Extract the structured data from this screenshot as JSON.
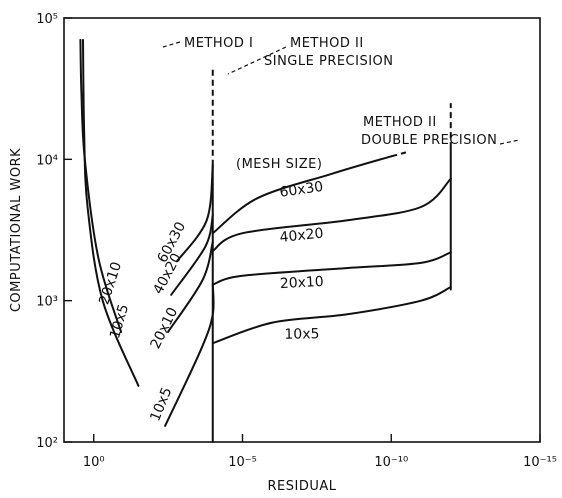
{
  "chart_data": {
    "type": "line",
    "title": "",
    "xlabel": "RESIDUAL",
    "ylabel": "COMPUTATIONAL WORK",
    "x_scale": "log",
    "y_scale": "log",
    "x_direction": "decreasing",
    "xlim": [
      10,
      1e-15
    ],
    "ylim": [
      100,
      100000
    ],
    "x_ticks": [
      {
        "value": 1,
        "label": "10⁰"
      },
      {
        "value": 1e-05,
        "label": "10⁻⁵"
      },
      {
        "value": 1e-10,
        "label": "10⁻¹⁰"
      },
      {
        "value": 1e-15,
        "label": "10⁻¹⁵"
      }
    ],
    "y_ticks": [
      {
        "value": 100,
        "label": "10²"
      },
      {
        "value": 1000,
        "label": "10³"
      },
      {
        "value": 10000,
        "label": "10⁴"
      },
      {
        "value": 100000,
        "label": "10⁵"
      }
    ],
    "annotations": {
      "method1": "METHOD I",
      "method2_single_line1": "METHOD II",
      "method2_single_line2": "SINGLE PRECISION",
      "method2_double_line1": "METHOD II",
      "method2_double_line2": "DOUBLE PRECISION",
      "mesh_size": "(MESH SIZE)"
    },
    "series": [
      {
        "group": "method1",
        "label": "20x10",
        "points": [
          [
            0.12,
            600
          ],
          [
            0.7,
            2000
          ],
          [
            2.0,
            10000
          ],
          [
            2.6,
            30000
          ],
          [
            2.8,
            70000
          ]
        ]
      },
      {
        "group": "method1",
        "label": "10x5",
        "points": [
          [
            0.0316,
            250
          ],
          [
            0.5,
            1000
          ],
          [
            1.6,
            4500
          ],
          [
            2.1,
            15000
          ],
          [
            2.3,
            70000
          ]
        ]
      },
      {
        "group": "method2_single",
        "label": "60x30",
        "points": [
          [
            0.0016,
            1900
          ],
          [
            0.00016,
            3700
          ],
          [
            0.0001,
            9000
          ]
        ]
      },
      {
        "group": "method2_single",
        "label": "40x20",
        "points": [
          [
            0.0025,
            1100
          ],
          [
            0.00018,
            2400
          ],
          [
            0.0001,
            4000
          ]
        ]
      },
      {
        "group": "method2_single",
        "label": "20x10",
        "points": [
          [
            0.0032,
            600
          ],
          [
            0.00022,
            1400
          ],
          [
            0.0001,
            2600
          ]
        ]
      },
      {
        "group": "method2_single",
        "label": "10x5",
        "points": [
          [
            0.004,
            130
          ],
          [
            0.00025,
            450
          ],
          [
            0.0001,
            800
          ],
          [
            0.0001,
            1300
          ]
        ]
      },
      {
        "group": "method2_double",
        "label": "60x30",
        "points": [
          [
            0.0001,
            3000
          ],
          [
            3.2e-06,
            5300
          ],
          [
            1e-08,
            7900
          ],
          [
            1e-10,
            10500
          ]
        ]
      },
      {
        "group": "method2_double",
        "label": "40x20",
        "points": [
          [
            0.0001,
            2250
          ],
          [
            1e-05,
            3000
          ],
          [
            3.2e-09,
            3700
          ],
          [
            1e-11,
            4600
          ],
          [
            1e-12,
            7300
          ]
        ]
      },
      {
        "group": "method2_double",
        "label": "20x10",
        "points": [
          [
            0.0001,
            1300
          ],
          [
            1e-05,
            1500
          ],
          [
            3.2e-09,
            1700
          ],
          [
            1e-11,
            1850
          ],
          [
            1e-12,
            2200
          ]
        ]
      },
      {
        "group": "method2_double",
        "label": "10x5",
        "points": [
          [
            0.0001,
            500
          ],
          [
            1e-06,
            700
          ],
          [
            3.2e-09,
            800
          ],
          [
            1e-11,
            1000
          ],
          [
            1e-12,
            1250
          ]
        ]
      }
    ],
    "vertical_segments": [
      {
        "group": "method1_limit",
        "x": 2.3,
        "y_from": 70000,
        "y_to": 70000
      },
      {
        "group": "method2_single_limit",
        "x": 0.0001,
        "y_from": 100,
        "y_to": 9000,
        "dashed_to": 45000
      },
      {
        "group": "method2_double_limit",
        "x": 1e-12,
        "y_from": 1200,
        "y_to": 12000,
        "dashed_to": 25000
      }
    ],
    "grid": false
  }
}
